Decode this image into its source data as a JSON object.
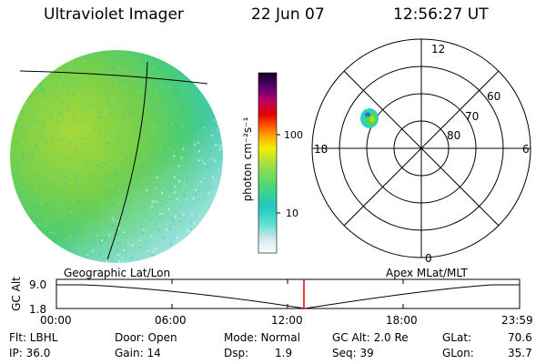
{
  "header": {
    "title": "Ultraviolet Imager",
    "date": "22 Jun 07",
    "time": "12:56:27 UT"
  },
  "colorbar": {
    "unit_label": "photon cm⁻²s⁻¹",
    "tick_100": "100",
    "tick_10": "10",
    "scale": "log"
  },
  "polar_plot": {
    "label_top": "12",
    "label_bottom": "0",
    "label_left": "18",
    "label_right": "6",
    "lat_60": "60",
    "lat_70": "70",
    "lat_80": "80"
  },
  "map_labels": {
    "left": "Geographic Lat/Lon",
    "right": "Apex MLat/MLT"
  },
  "altitude_plot": {
    "axis_label": "GC Alt",
    "y_top": "9.0",
    "y_bottom": "1.8",
    "x_ticks": [
      "00:00",
      "06:00",
      "12:00",
      "18:00",
      "23:59"
    ],
    "marker_color": "#e00000"
  },
  "info": {
    "flt": "Flt: LBHL",
    "ip": "IP: 36.0",
    "door": "Door: Open",
    "gain": "Gain: 14",
    "mode": "Mode: Normal",
    "dsp_label": "Dsp:",
    "dsp_value": "1.9",
    "gc_alt": "GC Alt: 2.0 Re",
    "seq": "Seq: 39",
    "glat": "GLat:",
    "glat_value": "70.6",
    "glon": "GLon:",
    "glon_value": "35.7"
  }
}
